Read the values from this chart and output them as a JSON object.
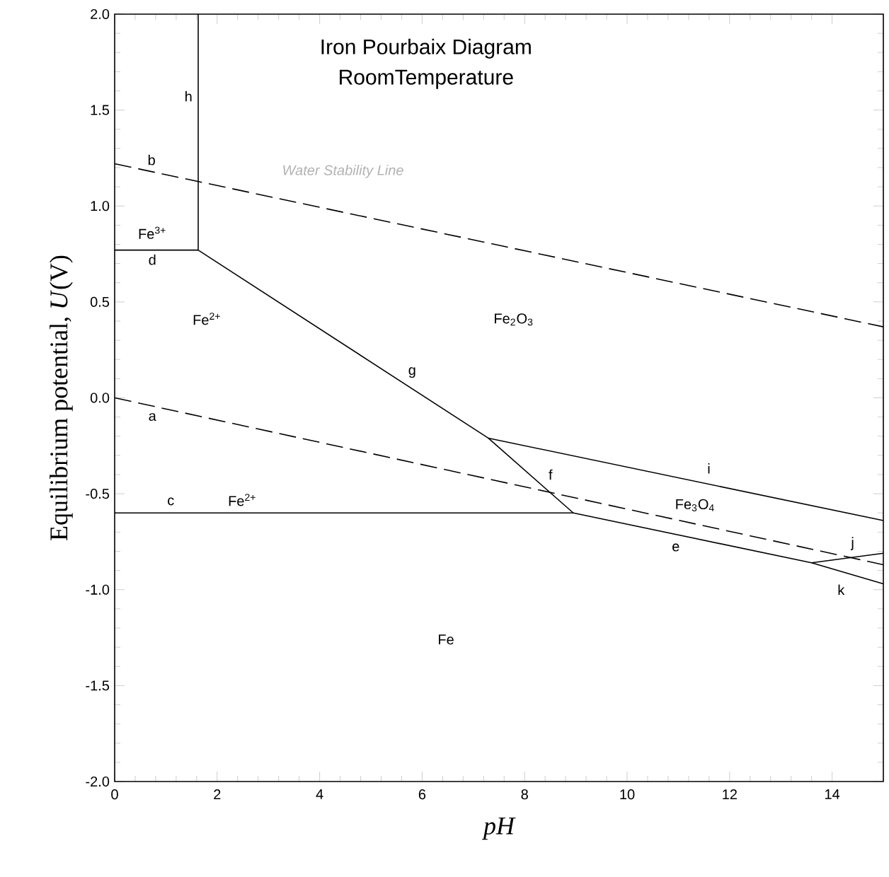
{
  "chart_data": {
    "type": "line",
    "title": "Iron Pourbaix Diagram",
    "subtitle": "RoomTemperature",
    "xlabel": "pH",
    "ylabel": "Equilibrium potential, *U*(V)",
    "xlim": [
      0,
      15
    ],
    "ylim": [
      -2.0,
      2.0
    ],
    "xticks": [
      0,
      2,
      4,
      6,
      8,
      10,
      12,
      14
    ],
    "yticks": [
      {
        "value": -2.0,
        "label": "-2.0"
      },
      {
        "value": -1.5,
        "label": "-1.5"
      },
      {
        "value": -1.0,
        "label": "-1.0"
      },
      {
        "value": -0.5,
        "label": "-0.5"
      },
      {
        "value": 0.0,
        "label": "0.0"
      },
      {
        "value": 0.5,
        "label": "0.5"
      },
      {
        "value": 1.0,
        "label": "1.0"
      },
      {
        "value": 1.5,
        "label": "1.5"
      },
      {
        "value": 2.0,
        "label": "2.0"
      }
    ],
    "marker": "none",
    "series": [
      {
        "color": "#000000",
        "line_style": "dashed",
        "x": [
          0,
          15
        ],
        "values": [
          1.22,
          0.37
        ]
      },
      {
        "color": "#000000",
        "line_style": "dashed",
        "x": [
          0,
          15
        ],
        "values": [
          0.0,
          -0.87
        ]
      },
      {
        "color": "#000000",
        "line_style": "solid",
        "x": [
          1.63,
          1.63
        ],
        "values": [
          0.77,
          2.0
        ]
      },
      {
        "color": "#000000",
        "line_style": "solid",
        "x": [
          0,
          1.63
        ],
        "values": [
          0.77,
          0.77
        ]
      },
      {
        "color": "#000000",
        "line_style": "solid",
        "x": [
          1.63,
          7.29,
          8.95
        ],
        "values": [
          0.77,
          -0.21,
          -0.6
        ]
      },
      {
        "color": "#000000",
        "line_style": "solid",
        "x": [
          7.29,
          15
        ],
        "values": [
          -0.21,
          -0.64
        ]
      },
      {
        "color": "#000000",
        "line_style": "solid",
        "x": [
          0,
          8.95,
          13.6,
          15
        ],
        "values": [
          -0.6,
          -0.6,
          -0.86,
          -0.97
        ]
      },
      {
        "color": "#000000",
        "line_style": "solid",
        "x": [
          13.6,
          15
        ],
        "values": [
          -0.86,
          -0.81
        ]
      }
    ],
    "annotations": [
      "Water Stability Line",
      "h",
      "b",
      "Fe$^{3+}$",
      "d",
      "Fe$^{2+}$",
      "Fe$_{2}$O$_{3}$",
      "g",
      "a",
      "f",
      "i",
      "c",
      "Fe$^{2+}$",
      "Fe$_{3}$O$_{4}$",
      "e",
      "j",
      "k",
      "Fe"
    ]
  }
}
